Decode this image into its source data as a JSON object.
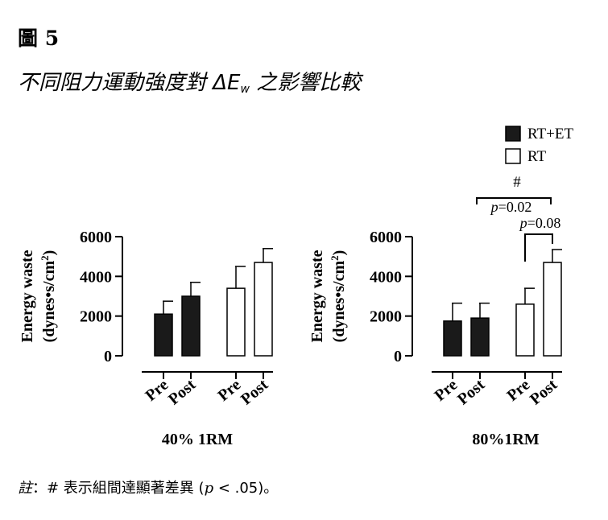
{
  "figure_label": "圖 5",
  "title": {
    "prefix": "不同阻力運動強度對 ",
    "symbol": "ΔE",
    "subscript": "w",
    "suffix": " 之影響比較"
  },
  "note": {
    "label": "註",
    "colon": "：",
    "text_before": "# 表示組間達顯著差異 (",
    "p_symbol": "p",
    "text_after": " < .05)。"
  },
  "legend": [
    {
      "label": "RT+ET",
      "fill": "#1a1a1a"
    },
    {
      "label": "RT",
      "fill": "#ffffff"
    }
  ],
  "chart_data": [
    {
      "type": "bar",
      "panel_label": "40%  1RM",
      "ylabel_line1": "Energy waste",
      "ylabel_line2_prefix": "(dynes•s/cm",
      "ylabel_line2_sup": "2",
      "ylabel_line2_suffix": ")",
      "ylim": [
        0,
        6000
      ],
      "yticks": [
        "0",
        "2000",
        "4000",
        "6000"
      ],
      "categories": [
        "Pre",
        "Post",
        "Pre",
        "Post"
      ],
      "groups": [
        "RT+ET",
        "RT+ET",
        "RT",
        "RT"
      ],
      "values": [
        2100,
        3000,
        3400,
        4700
      ],
      "errors": [
        650,
        700,
        1100,
        700
      ],
      "annotations": []
    },
    {
      "type": "bar",
      "panel_label": "80%1RM",
      "ylabel_line1": "Energy waste",
      "ylabel_line2_prefix": "(dynes•s/cm",
      "ylabel_line2_sup": "2",
      "ylabel_line2_suffix": ")",
      "ylim": [
        0,
        6000
      ],
      "yticks": [
        "0",
        "2000",
        "4000",
        "6000"
      ],
      "categories": [
        "Pre",
        "Post",
        "Pre",
        "Post"
      ],
      "groups": [
        "RT+ET",
        "RT+ET",
        "RT",
        "RT"
      ],
      "values": [
        1750,
        1900,
        2600,
        4700
      ],
      "errors": [
        900,
        750,
        800,
        650
      ],
      "annotations": [
        {
          "text_symbol": "#",
          "p_symbol": "p",
          "p_value": "=0.02",
          "from": 1,
          "to": 3
        },
        {
          "p_symbol": "p",
          "p_value": "=0.08",
          "from": 2,
          "to": 3
        }
      ]
    }
  ]
}
